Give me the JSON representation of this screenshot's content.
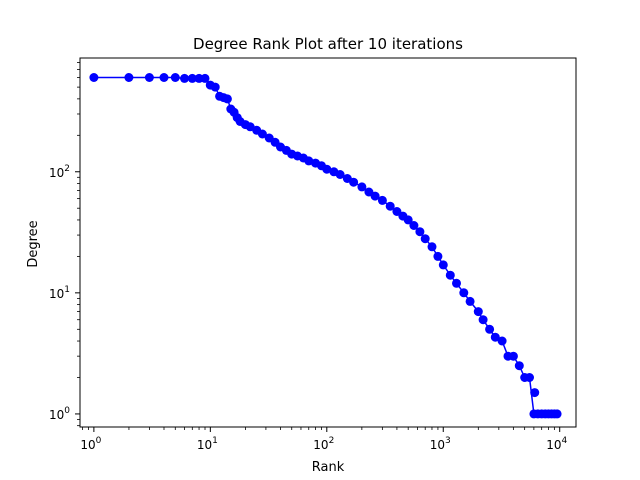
{
  "chart_data": {
    "type": "scatter",
    "title": "Degree Rank Plot after 10 iterations",
    "xlabel": "Rank",
    "ylabel": "Degree",
    "xscale": "log",
    "yscale": "log",
    "xlim": [
      0.76,
      13800
    ],
    "ylim": [
      0.78,
      870
    ],
    "grid": false,
    "line_style": "solid line with circle markers",
    "color": "#0000ff",
    "x_ticks": [
      {
        "base": "10",
        "exp": "0",
        "value": 1
      },
      {
        "base": "10",
        "exp": "1",
        "value": 10
      },
      {
        "base": "10",
        "exp": "2",
        "value": 100
      },
      {
        "base": "10",
        "exp": "3",
        "value": 1000
      },
      {
        "base": "10",
        "exp": "4",
        "value": 10000
      }
    ],
    "y_ticks": [
      {
        "base": "10",
        "exp": "0",
        "value": 1
      },
      {
        "base": "10",
        "exp": "1",
        "value": 10
      },
      {
        "base": "10",
        "exp": "2",
        "value": 100
      }
    ],
    "series": [
      {
        "x": [
          1,
          2,
          3,
          4,
          5,
          6,
          7,
          8,
          9,
          10,
          11,
          12,
          13,
          14,
          15,
          16,
          17,
          18,
          20,
          22,
          25,
          28,
          32,
          36,
          40,
          45,
          50,
          56,
          63,
          70,
          80,
          90,
          100,
          115,
          130,
          150,
          170,
          200,
          230,
          260,
          300,
          350,
          400,
          450,
          500,
          560,
          630,
          700,
          800,
          900,
          1000,
          1150,
          1300,
          1500,
          1700,
          2000,
          2200,
          2500,
          2800,
          3200,
          3600,
          4000,
          4500,
          5000,
          5500,
          6000,
          6500,
          7000,
          7500,
          8000,
          8500,
          9000,
          9500
        ],
        "y": [
          600,
          600,
          600,
          600,
          600,
          590,
          590,
          590,
          590,
          520,
          500,
          420,
          410,
          400,
          330,
          310,
          280,
          260,
          245,
          235,
          220,
          205,
          190,
          175,
          160,
          150,
          140,
          135,
          130,
          123,
          118,
          112,
          105,
          100,
          95,
          88,
          82,
          75,
          68,
          63,
          58,
          52,
          47,
          43,
          40,
          36,
          32,
          28,
          24,
          20,
          17,
          14,
          12,
          10,
          8.5,
          7,
          6,
          5,
          4.3,
          4,
          3,
          3,
          2.5,
          2,
          2,
          1,
          1,
          1,
          1,
          1,
          1,
          1,
          1
        ],
        "extra_points": [
          {
            "x": 6100,
            "y": 1.5
          }
        ]
      }
    ]
  }
}
